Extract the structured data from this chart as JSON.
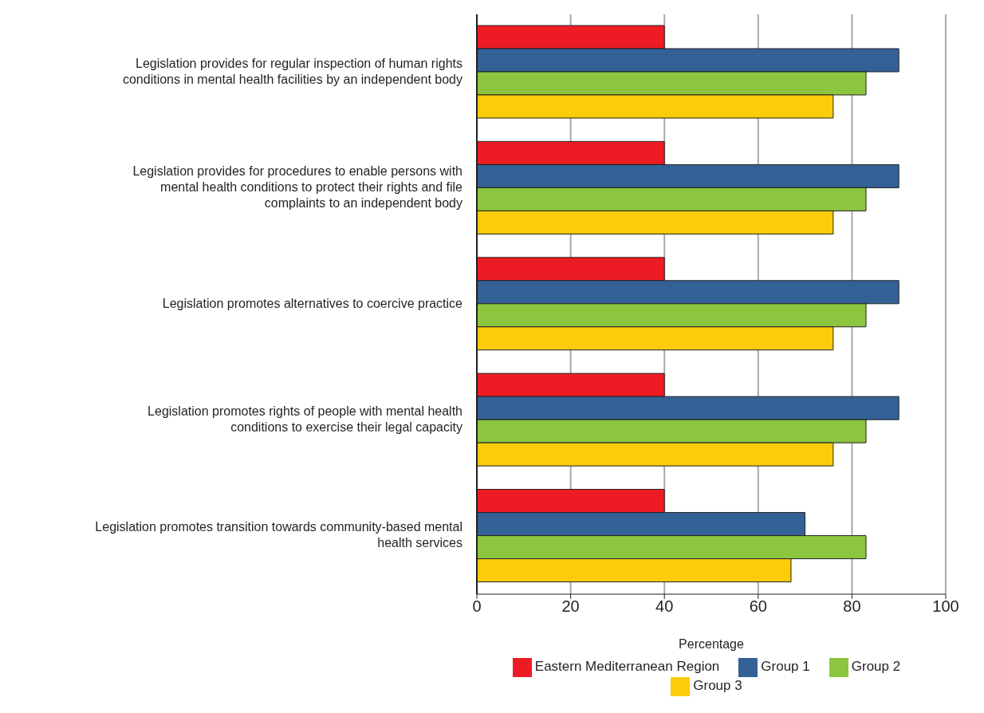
{
  "chart_data": {
    "type": "bar",
    "orientation": "horizontal",
    "xlabel": "Percentage",
    "categories": [
      "Legislation provides for regular inspection of human rights conditions in mental health facilities by an independent body",
      "Legislation provides for procedures to enable persons with mental health conditions to protect their rights and file complaints to an independent body",
      "Legislation promotes alternatives to coercive practice",
      "Legislation promotes rights of people with mental health conditions to exercise their legal capacity",
      "Legislation promotes transition towards community-based mental health services"
    ],
    "series": [
      {
        "name": "Eastern Mediterranean Region",
        "color": "#ed1c24",
        "values": [
          40,
          40,
          40,
          40,
          40
        ]
      },
      {
        "name": "Group 1",
        "color": "#336195",
        "values": [
          90,
          90,
          90,
          90,
          70
        ]
      },
      {
        "name": "Group 2",
        "color": "#8cc63f",
        "values": [
          83,
          83,
          83,
          83,
          83
        ]
      },
      {
        "name": "Group 3",
        "color": "#fccc0a",
        "values": [
          76,
          76,
          76,
          76,
          67
        ]
      }
    ],
    "xlim": [
      0,
      100
    ],
    "xticks": [
      0,
      20,
      40,
      60,
      80,
      100
    ],
    "grid": "x",
    "legend": "bottom"
  }
}
